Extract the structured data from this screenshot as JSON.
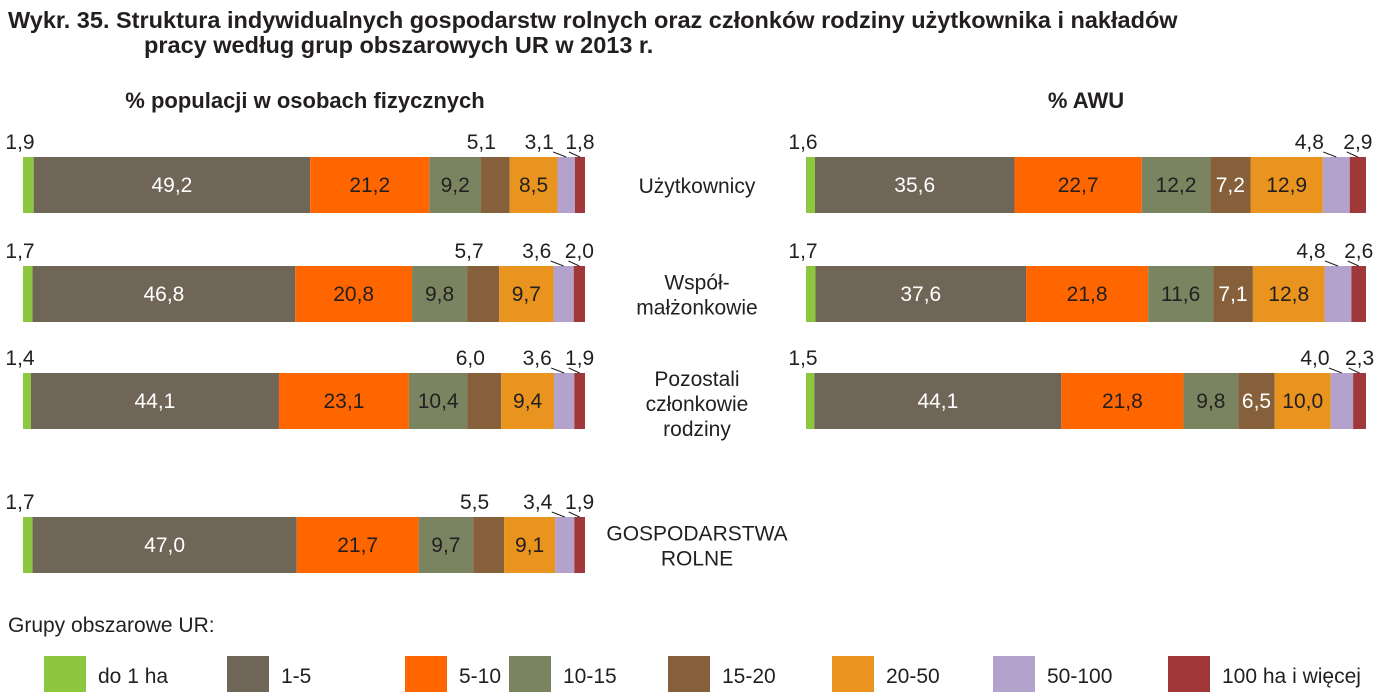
{
  "title_line1": "Wykr. 35. Struktura indywidualnych gospodarstw rolnych oraz członków rodziny użytkownika i nakładów",
  "title_line2": "pracy według grup obszarowych UR w 2013 r.",
  "legend_title": "Grupy obszarowe UR:",
  "legend_items": [
    "do 1 ha",
    "1-5",
    "5-10",
    "10-15",
    "15-20",
    "20-50",
    "50-100",
    "100 ha i więcej"
  ],
  "colors": [
    "#8dc63f",
    "#706657",
    "#ff6600",
    "#7b8460",
    "#86603a",
    "#e8941f",
    "#b3a2cc",
    "#a0383a"
  ],
  "chart_data": [
    {
      "type": "bar",
      "orientation": "horizontal-stacked",
      "title": "% populacji w osobach fizycznych",
      "categories": [
        "Użytkownicy",
        "Współ-\nmałżonkowie",
        "Pozostali\nczłonkowie\nrodziny",
        "GOSPODARSTWA\nROLNE"
      ],
      "series": [
        {
          "name": "do 1 ha",
          "values": [
            1.9,
            1.7,
            1.4,
            1.7
          ]
        },
        {
          "name": "1-5",
          "values": [
            49.2,
            46.8,
            44.1,
            47.0
          ]
        },
        {
          "name": "5-10",
          "values": [
            21.2,
            20.8,
            23.1,
            21.7
          ]
        },
        {
          "name": "10-15",
          "values": [
            9.2,
            9.8,
            10.4,
            9.7
          ]
        },
        {
          "name": "15-20",
          "values": [
            5.1,
            5.7,
            6.0,
            5.5
          ]
        },
        {
          "name": "20-50",
          "values": [
            8.5,
            9.7,
            9.4,
            9.1
          ]
        },
        {
          "name": "50-100",
          "values": [
            3.1,
            3.6,
            3.6,
            3.4
          ]
        },
        {
          "name": "100 ha i więcej",
          "values": [
            1.8,
            2.0,
            1.9,
            1.9
          ]
        }
      ],
      "xlim": [
        0,
        100
      ]
    },
    {
      "type": "bar",
      "orientation": "horizontal-stacked",
      "title": "% AWU",
      "categories": [
        "Użytkownicy",
        "Współ-\nmałżonkowie",
        "Pozostali\nczłonkowie\nrodziny"
      ],
      "series": [
        {
          "name": "do 1 ha",
          "values": [
            1.6,
            1.7,
            1.5
          ]
        },
        {
          "name": "1-5",
          "values": [
            35.6,
            37.6,
            44.1
          ]
        },
        {
          "name": "5-10",
          "values": [
            22.7,
            21.8,
            21.8
          ]
        },
        {
          "name": "10-15",
          "values": [
            12.2,
            11.6,
            9.8
          ]
        },
        {
          "name": "15-20",
          "values": [
            7.2,
            7.1,
            6.5
          ]
        },
        {
          "name": "20-50",
          "values": [
            12.9,
            12.8,
            10.0
          ]
        },
        {
          "name": "50-100",
          "values": [
            4.8,
            4.8,
            4.0
          ]
        },
        {
          "name": "100 ha i więcej",
          "values": [
            2.9,
            2.6,
            2.3
          ]
        }
      ],
      "xlim": [
        0,
        100
      ]
    }
  ]
}
